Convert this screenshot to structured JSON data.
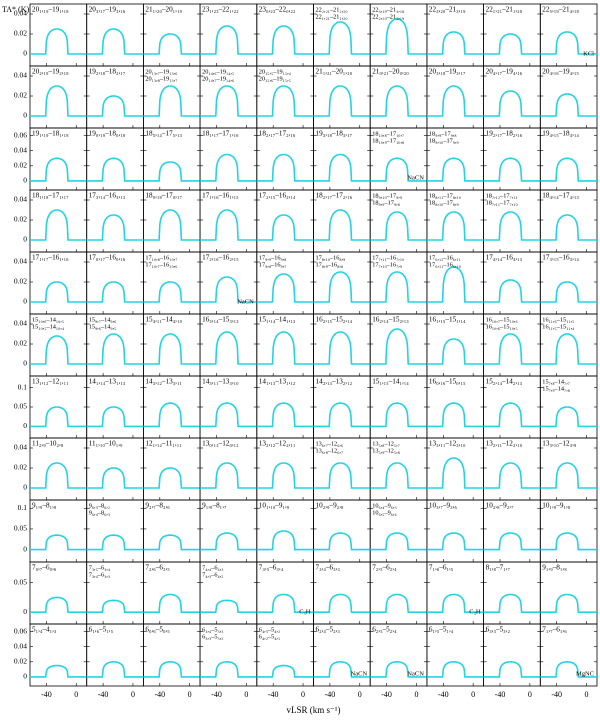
{
  "chart_data": {
    "type": "spectra_grid",
    "x_label": "vLSR (km s⁻¹)",
    "y_label": "TA* (K)",
    "xlim": [
      -62,
      14
    ],
    "xticks": [
      -40,
      0
    ],
    "model_color": "#22d3e6",
    "rows": [
      {
        "ylim": [
          -0.012,
          0.05
        ],
        "yticks": [
          0,
          0.02,
          0.04
        ],
        "panels": [
          {
            "label": [
              "20₁,₁₉–19₁,₁₈"
            ],
            "peak": 0.025
          },
          {
            "label": [
              "20₃,₁₇–19₃,₁₆"
            ],
            "peak": 0.025
          },
          {
            "label": [
              "21₁,₂₀–20₁,₁₉"
            ],
            "peak": 0.02
          },
          {
            "label": [
              "23₁,₂₃–22₁,₂₂"
            ],
            "peak": 0.028
          },
          {
            "label": [
              "23₀,₂₃–22₀,₂₂"
            ],
            "peak": 0.028
          },
          {
            "label": [
              "22₂,₂₁–21₂,₂₀",
              "22₁,₂₁–21₁,₂₀"
            ],
            "peak": 0.032
          },
          {
            "label": [
              "22₃,₁₉–21₃,₁₈",
              "22₂,₂₀–21₂,₁₉"
            ],
            "peak": 0.035
          },
          {
            "label": [
              "22₃,₂₀–21₃,₁₉"
            ],
            "peak": 0.022
          },
          {
            "label": [
              "22₁,₂₁–21₁,₂₀"
            ],
            "peak": 0.02
          },
          {
            "label": [
              "22₅,₁₉–21₄,₁₈"
            ],
            "peak": 0.022,
            "note": "KCl"
          }
        ]
      },
      {
        "ylim": [
          -0.012,
          0.05
        ],
        "yticks": [
          0,
          0.02,
          0.04
        ],
        "panels": [
          {
            "label": [
              "20₂,₁₉–19₂,₁₈"
            ],
            "peak": 0.03
          },
          {
            "label": [
              "19₂,₁₈–18₂,₁₇"
            ],
            "peak": 0.02
          },
          {
            "label": [
              "20₁₃,₇–19₁₃,₆",
              "20₁₃,₈–19₁₃,₇"
            ],
            "peak": 0.03
          },
          {
            "label": [
              "20₁₄,₆–19₁₄,₅",
              "20₁₄,₇–19₁₄,₆"
            ],
            "peak": 0.03
          },
          {
            "label": [
              "20₁₅,₅–19₁₅,₄",
              "20₁₅,₆–19₁₅,₅"
            ],
            "peak": 0.03
          },
          {
            "label": [
              "21₁,₂₁–20₁,₂₀"
            ],
            "peak": 0.03
          },
          {
            "label": [
              "21₀,₂₁–20₀,₂₀"
            ],
            "peak": 0.03
          },
          {
            "label": [
              "20₃,₁₈–19₃,₁₇"
            ],
            "peak": 0.03
          },
          {
            "label": [
              "20₄,₁₇–19₄,₁₆"
            ],
            "peak": 0.025
          },
          {
            "label": [
              "20₄,₁₆–19₄,₁₅"
            ],
            "peak": 0.022
          }
        ]
      },
      {
        "ylim": [
          -0.012,
          0.07
        ],
        "yticks": [
          0,
          0.02,
          0.04,
          0.06
        ],
        "panels": [
          {
            "label": [
              "19₁,₁₉–18₁,₁₈"
            ],
            "peak": 0.03
          },
          {
            "label": [
              "19₀,₁₉–18₀,₁₈"
            ],
            "peak": 0.03
          },
          {
            "label": [
              "18₅,₁₄–17₅,₁₃"
            ],
            "peak": 0.025
          },
          {
            "label": [
              "18₁,₁₇–17₁,₁₆"
            ],
            "peak": 0.035
          },
          {
            "label": [
              "18₂,₁₇–17₂,₁₆"
            ],
            "peak": 0.035
          },
          {
            "label": [
              "19₃,₁₈–18₃,₁₇"
            ],
            "peak": 0.035
          },
          {
            "label": [
              "18₁₀,₈–17₁₀,₇",
              "18₁₀,₉–17₁₀,₈"
            ],
            "peak": 0.03,
            "note": "NaCN"
          },
          {
            "label": [
              "18₉,₉–17₉,₈",
              "18₉,₁₀–17₉,₉"
            ],
            "peak": 0.03
          },
          {
            "label": [
              "19₂,₁₇–18₂,₁₆"
            ],
            "peak": 0.03
          },
          {
            "label": [
              "19₄,₁₅–18₄,₁₄"
            ],
            "peak": 0.03
          }
        ]
      },
      {
        "ylim": [
          -0.012,
          0.05
        ],
        "yticks": [
          0,
          0.02,
          0.04
        ],
        "panels": [
          {
            "label": [
              "18₁,₁₈–17₁,₁₇"
            ],
            "peak": 0.03
          },
          {
            "label": [
              "17₃,₁₄–16₃,₁₃"
            ],
            "peak": 0.025
          },
          {
            "label": [
              "18₀,₁₈–17₀,₁₇"
            ],
            "peak": 0.03
          },
          {
            "label": [
              "17₁,₁₆–16₁,₁₅"
            ],
            "peak": 0.03
          },
          {
            "label": [
              "17₂,₁₅–16₂,₁₄"
            ],
            "peak": 0.025
          },
          {
            "label": [
              "18₂,₁₇–17₂,₁₆"
            ],
            "peak": 0.03
          },
          {
            "label": [
              "18₉,₁₀–17₉,₉",
              "18₉,₉–17₉,₈"
            ],
            "peak": 0.028
          },
          {
            "label": [
              "18₈,₁₁–17₈,₁₀",
              "18₈,₁₀–17₈,₉"
            ],
            "peak": 0.028
          },
          {
            "label": [
              "18₇,₁₂–17₇,₁₁",
              "18₇,₁₁–17₇,₁₀"
            ],
            "peak": 0.028
          },
          {
            "label": [
              "18₄,₁₄–17₄,₁₃"
            ],
            "peak": 0.025
          }
        ]
      },
      {
        "ylim": [
          -0.012,
          0.05
        ],
        "yticks": [
          0,
          0.02,
          0.04
        ],
        "panels": [
          {
            "label": [
              "17₁,₁₇–16₁,₁₆"
            ],
            "peak": 0.02
          },
          {
            "label": [
              "17₀,₁₇–16₀,₁₆"
            ],
            "peak": 0.02
          },
          {
            "label": [
              "17₁₀,₈–16₁₀,₇",
              "17₁₀,₇–16₁₀,₆"
            ],
            "peak": 0.02
          },
          {
            "label": [
              "17₂,₁₆–16₂,₁₅"
            ],
            "peak": 0.025,
            "note": "NaCN"
          },
          {
            "label": [
              "17₉,₉–16₉,₈",
              "17₉,₈–16₉,₇"
            ],
            "peak": 0.028
          },
          {
            "label": [
              "17₈,₁₀–16₈,₉",
              "17₈,₉–16₈,₈"
            ],
            "peak": 0.03
          },
          {
            "label": [
              "17₇,₁₁–16₇,₁₀",
              "17₇,₁₀–16₇,₉"
            ],
            "peak": 0.03
          },
          {
            "label": [
              "17₆,₁₂–16₆,₁₁",
              "17₆,₁₁–16₆,₁₀"
            ],
            "peak": 0.035
          },
          {
            "label": [
              "17₄,₁₄–16₄,₁₃"
            ],
            "peak": 0.022
          },
          {
            "label": [
              "17₃,₁₅–16₃,₁₄"
            ],
            "peak": 0.02
          }
        ]
      },
      {
        "ylim": [
          -0.012,
          0.05
        ],
        "yticks": [
          0,
          0.02,
          0.04
        ],
        "panels": [
          {
            "label": [
              "15₁₀,₆–14₁₀,₅",
              "15₁₀,₅–14₁₀,₄"
            ],
            "peak": 0.028
          },
          {
            "label": [
              "15₉,₇–14₉,₆",
              "15₉,₆–14₉,₅"
            ],
            "peak": 0.03
          },
          {
            "label": [
              "15₄,₁₁–14₄,₁₀"
            ],
            "peak": 0.03
          },
          {
            "label": [
              "16₃,₁₄–15₃,₁₃"
            ],
            "peak": 0.032
          },
          {
            "label": [
              "15₁,₁₄–14₁,₁₃"
            ],
            "peak": 0.032
          },
          {
            "label": [
              "16₂,₁₅–15₂,₁₄"
            ],
            "peak": 0.032
          },
          {
            "label": [
              "16₂,₁₄–15₂,₁₃"
            ],
            "peak": 0.035
          },
          {
            "label": [
              "16₁,₁₅–15₁,₁₄"
            ],
            "peak": 0.025
          },
          {
            "label": [
              "16₁₀,₇–15₁₀,₆",
              "16₁₀,₆–15₁₀,₅"
            ],
            "peak": 0.03
          },
          {
            "label": [
              "16₁₁,₆–15₁₁,₅",
              "16₁₁,₅–15₁₁,₄"
            ],
            "peak": 0.03
          }
        ]
      },
      {
        "ylim": [
          -0.03,
          0.13
        ],
        "yticks": [
          0,
          0.05,
          0.1
        ],
        "panels": [
          {
            "label": [
              "13₁,₁₂–12₁,₁₁"
            ],
            "peak": 0.05
          },
          {
            "label": [
              "14₁,₁₄–13₁,₁₃"
            ],
            "peak": 0.05
          },
          {
            "label": [
              "14₃,₁₂–13₃,₁₁"
            ],
            "peak": 0.06
          },
          {
            "label": [
              "14₃,₁₁–13₃,₁₀"
            ],
            "peak": 0.06
          },
          {
            "label": [
              "14₁,₁₃–13₁,₁₂"
            ],
            "peak": 0.06
          },
          {
            "label": [
              "14₂,₁₃–13₂,₁₂"
            ],
            "peak": 0.06
          },
          {
            "label": [
              "15₁,₁₅–14₁,₁₄"
            ],
            "peak": 0.06
          },
          {
            "label": [
              "16₀,₁₆–15₀,₁₅"
            ],
            "peak": 0.06
          },
          {
            "label": [
              "15₂,₁₄–14₂,₁₃"
            ],
            "peak": 0.06
          },
          {
            "label": [
              "15₇,₈–14₇,₇",
              "15₇,₉–14₇,₈"
            ],
            "peak": 0.05
          }
        ]
      },
      {
        "ylim": [
          -0.012,
          0.05
        ],
        "yticks": [
          0,
          0.02,
          0.04
        ],
        "panels": [
          {
            "label": [
              "11₂,₉–10₂,₈"
            ],
            "peak": 0.025
          },
          {
            "label": [
              "11₁,₁₀–10₁,₉"
            ],
            "peak": 0.02
          },
          {
            "label": [
              "12₁,₁₂–11₁,₁₁"
            ],
            "peak": 0.02
          },
          {
            "label": [
              "13₀,₁₃–12₀,₁₂"
            ],
            "peak": 0.025
          },
          {
            "label": [
              "13₂,₁₂–12₂,₁₁"
            ],
            "peak": 0.025
          },
          {
            "label": [
              "13₆,₇–12₆,₆",
              "13₆,₈–12₆,₇"
            ],
            "peak": 0.025
          },
          {
            "label": [
              "13₅,₈–12₅,₇",
              "13₅,₉–12₅,₈"
            ],
            "peak": 0.025
          },
          {
            "label": [
              "13₃,₁₁–12₃,₁₀"
            ],
            "peak": 0.03
          },
          {
            "label": [
              "13₂,₁₁–12₂,₁₀"
            ],
            "peak": 0.025
          },
          {
            "label": [
              "13₃,₁₀–12₃,₉"
            ],
            "peak": 0.025
          }
        ]
      },
      {
        "ylim": [
          -0.03,
          0.12
        ],
        "yticks": [
          0,
          0.05,
          0.1
        ],
        "panels": [
          {
            "label": [
              "9₁,₉–8₁,₈"
            ],
            "peak": 0.035
          },
          {
            "label": [
              "9₆,₃–8₆,₂",
              "9₆,₄–8₆,₃"
            ],
            "peak": 0.035
          },
          {
            "label": [
              "9₂,₇–8₂,₆"
            ],
            "peak": 0.035
          },
          {
            "label": [
              "9₁,₈–8₁,₇"
            ],
            "peak": 0.04
          },
          {
            "label": [
              "10₁,₁₀–9₁,₉"
            ],
            "peak": 0.045
          },
          {
            "label": [
              "10₂,₉–9₂,₈"
            ],
            "peak": 0.04
          },
          {
            "label": [
              "10₆,₄–9₆,₃",
              "10₆,₅–9₆,₄"
            ],
            "peak": 0.04
          },
          {
            "label": [
              "10₃,₇–9₃,₆"
            ],
            "peak": 0.04
          },
          {
            "label": [
              "10₂,₈–9₂,₇"
            ],
            "peak": 0.04
          },
          {
            "label": [
              "10₁,₉–9₁,₈"
            ],
            "peak": 0.04
          }
        ]
      },
      {
        "ylim": [
          -0.02,
          0.085
        ],
        "yticks": [
          0,
          0.05
        ],
        "panels": [
          {
            "label": [
              "7₀,₇–6₀,₆"
            ],
            "peak": 0.025
          },
          {
            "label": [
              "7₃,₅–6₃,₄",
              "7₃,₄–6₃,₃"
            ],
            "peak": 0.02
          },
          {
            "label": [
              "7₂,₆–6₂,₅"
            ],
            "peak": 0.03
          },
          {
            "label": [
              "7₄,₄–6₄,₃",
              "7₄,₃–6₄,₂"
            ],
            "peak": 0.02
          },
          {
            "label": [
              "7₃,₅–6₃,₄"
            ],
            "peak": 0.03,
            "note": "C₃H"
          },
          {
            "label": [
              "7₃,₄–6₃,₃"
            ],
            "peak": 0.03
          },
          {
            "label": [
              "7₂,₅–6₂,₄"
            ],
            "peak": 0.03
          },
          {
            "label": [
              "7₁,₆–6₁,₅"
            ],
            "peak": 0.03,
            "note": "C₃H"
          },
          {
            "label": [
              "8₁,₈–7₁,₇"
            ],
            "peak": 0.03
          },
          {
            "label": [
              "9₁,₉–8₁,₈"
            ],
            "peak": 0.03
          }
        ]
      },
      {
        "ylim": [
          -0.012,
          0.07
        ],
        "yticks": [
          0,
          0.02,
          0.04,
          0.06
        ],
        "panels": [
          {
            "label": [
              "5₁,₄–4₁,₃"
            ],
            "peak": 0.015
          },
          {
            "label": [
              "6₁,₆–5₁,₅"
            ],
            "peak": 0.02
          },
          {
            "label": [
              "6₀,₆–5₀,₅"
            ],
            "peak": 0.02
          },
          {
            "label": [
              "6₃,₄–5₃,₃",
              "6₃,₃–5₃,₂"
            ],
            "peak": 0.02
          },
          {
            "label": [
              "6₄,₃–5₄,₂",
              "6₄,₂–5₄,₁"
            ],
            "peak": 0.015
          },
          {
            "label": [
              "6₂,₄–5₂,₃"
            ],
            "peak": 0.02,
            "note": "NaCN"
          },
          {
            "label": [
              "6₂,₅–5₂,₄"
            ],
            "peak": 0.02,
            "note": "NaCN"
          },
          {
            "label": [
              "6₁,₅–5₁,₄"
            ],
            "peak": 0.02
          },
          {
            "label": [
              "6₃,₃–5₃,₂"
            ],
            "peak": 0.02
          },
          {
            "label": [
              "7₁,₇–6₁,₆"
            ],
            "peak": 0.02,
            "note": "MgNC"
          }
        ]
      }
    ]
  }
}
